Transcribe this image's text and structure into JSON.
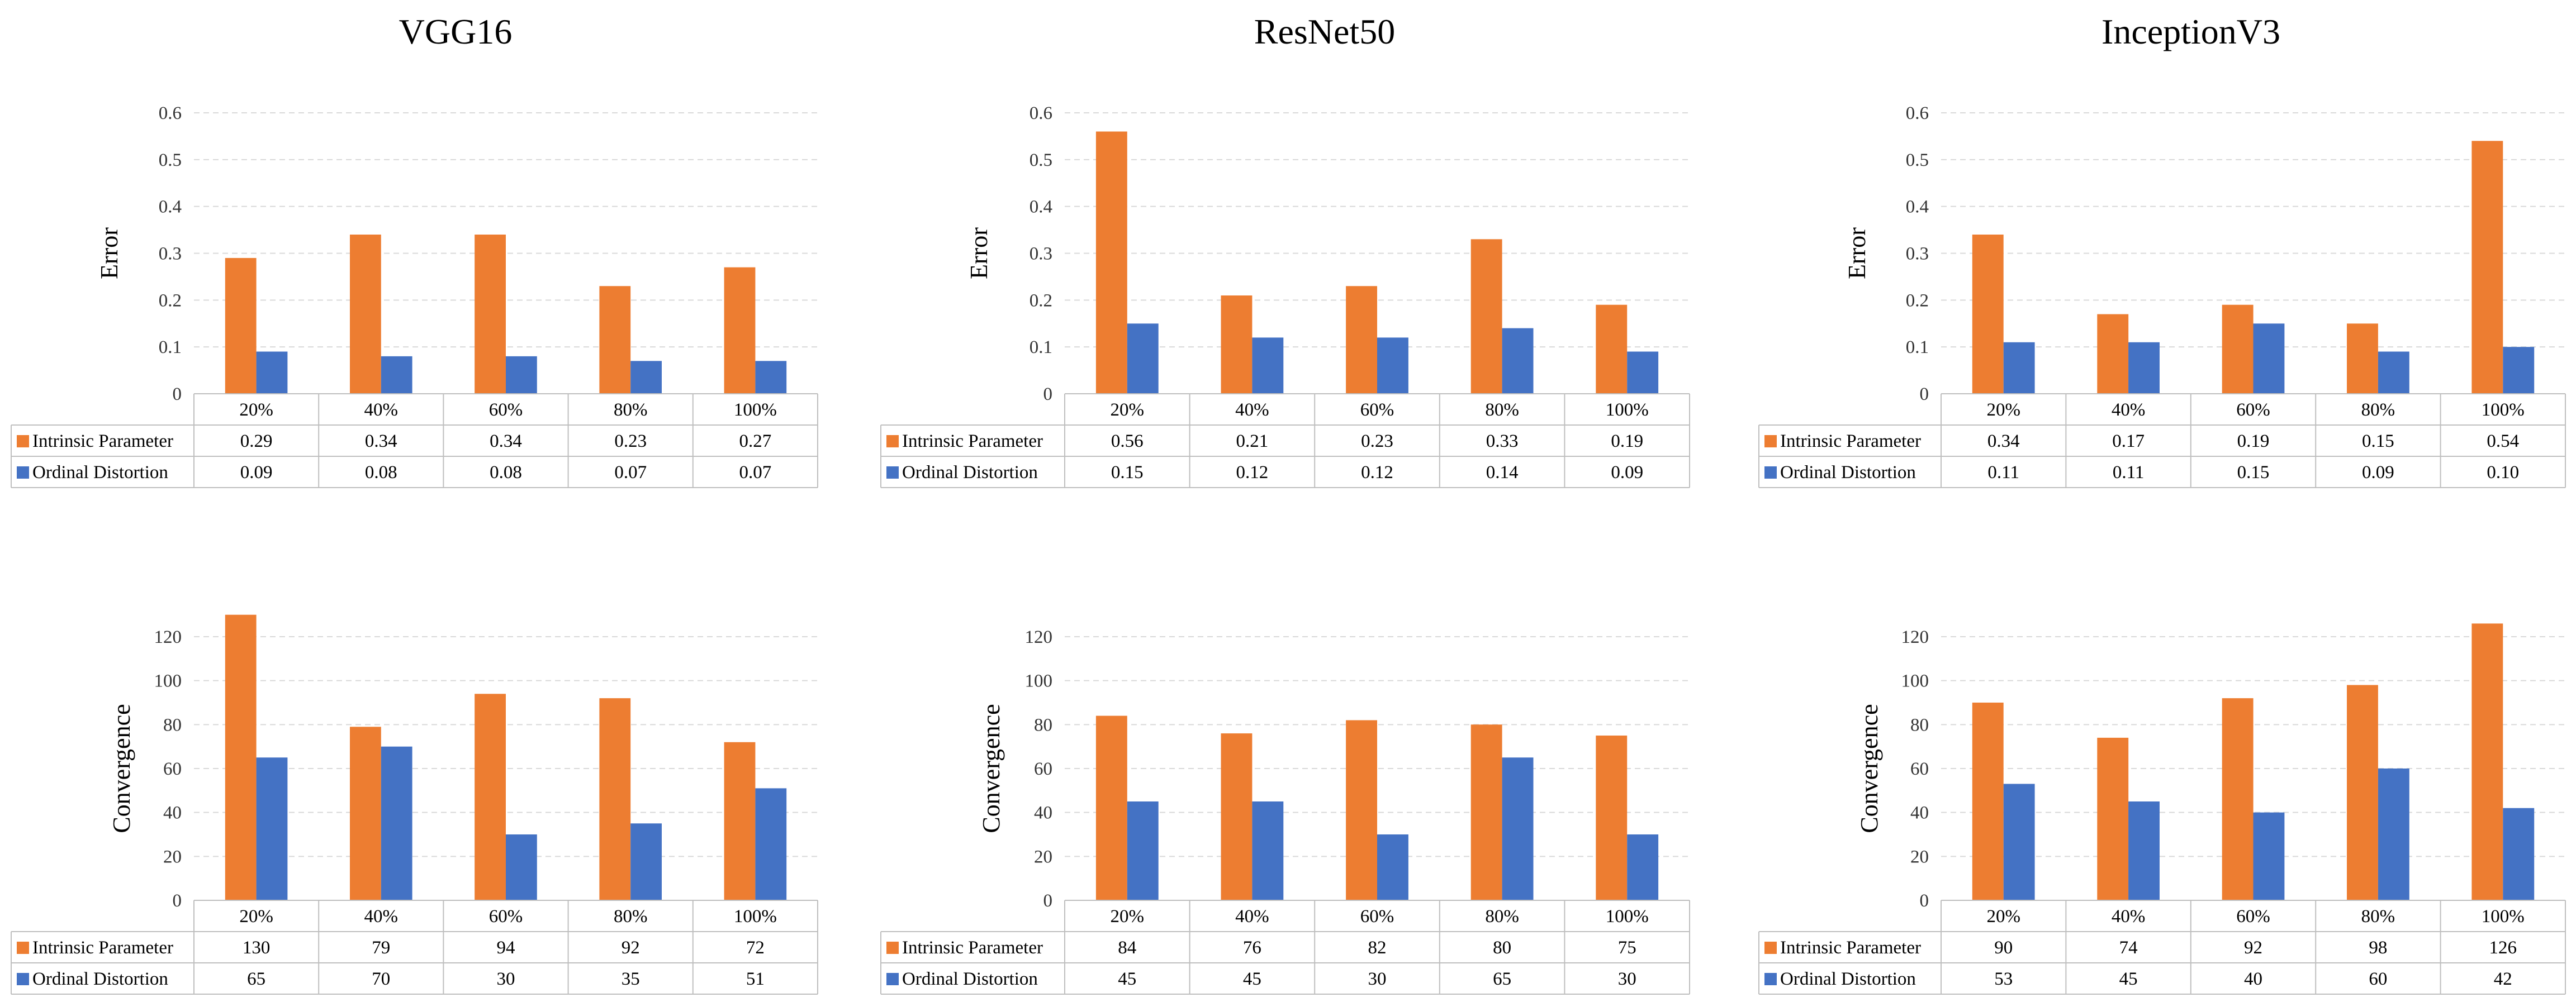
{
  "colors": {
    "intrinsic": "#ed7d31",
    "ordinal": "#4472c4",
    "grid": "#d9d9d9",
    "table": "#bfbfbf"
  },
  "columns": [
    {
      "title": "VGG16"
    },
    {
      "title": "ResNet50"
    },
    {
      "title": "InceptionV3"
    }
  ],
  "chart_data": [
    {
      "type": "bar",
      "model": "VGG16",
      "title": "VGG16",
      "ylabel": "Error",
      "categories": [
        "20%",
        "40%",
        "60%",
        "80%",
        "100%"
      ],
      "ylim": [
        0,
        0.6
      ],
      "yticks": [
        "0",
        "0.1",
        "0.2",
        "0.3",
        "0.4",
        "0.5",
        "0.6"
      ],
      "grid": true,
      "series": [
        {
          "name": "Intrinsic Parameter",
          "values": [
            0.29,
            0.34,
            0.34,
            0.23,
            0.27
          ],
          "labels": [
            "0.29",
            "0.34",
            "0.34",
            "0.23",
            "0.27"
          ]
        },
        {
          "name": "Ordinal Distortion",
          "values": [
            0.09,
            0.08,
            0.08,
            0.07,
            0.07
          ],
          "labels": [
            "0.09",
            "0.08",
            "0.08",
            "0.07",
            "0.07"
          ]
        }
      ]
    },
    {
      "type": "bar",
      "model": "ResNet50",
      "title": "ResNet50",
      "ylabel": "Error",
      "categories": [
        "20%",
        "40%",
        "60%",
        "80%",
        "100%"
      ],
      "ylim": [
        0,
        0.6
      ],
      "yticks": [
        "0",
        "0.1",
        "0.2",
        "0.3",
        "0.4",
        "0.5",
        "0.6"
      ],
      "grid": true,
      "series": [
        {
          "name": "Intrinsic Parameter",
          "values": [
            0.56,
            0.21,
            0.23,
            0.33,
            0.19
          ],
          "labels": [
            "0.56",
            "0.21",
            "0.23",
            "0.33",
            "0.19"
          ]
        },
        {
          "name": "Ordinal Distortion",
          "values": [
            0.15,
            0.12,
            0.12,
            0.14,
            0.09
          ],
          "labels": [
            "0.15",
            "0.12",
            "0.12",
            "0.14",
            "0.09"
          ]
        }
      ]
    },
    {
      "type": "bar",
      "model": "InceptionV3",
      "title": "InceptionV3",
      "ylabel": "Error",
      "categories": [
        "20%",
        "40%",
        "60%",
        "80%",
        "100%"
      ],
      "ylim": [
        0,
        0.6
      ],
      "yticks": [
        "0",
        "0.1",
        "0.2",
        "0.3",
        "0.4",
        "0.5",
        "0.6"
      ],
      "grid": true,
      "series": [
        {
          "name": "Intrinsic Parameter",
          "values": [
            0.34,
            0.17,
            0.19,
            0.15,
            0.54
          ],
          "labels": [
            "0.34",
            "0.17",
            "0.19",
            "0.15",
            "0.54"
          ]
        },
        {
          "name": "Ordinal Distortion",
          "values": [
            0.11,
            0.11,
            0.15,
            0.09,
            0.1
          ],
          "labels": [
            "0.11",
            "0.11",
            "0.15",
            "0.09",
            "0.10"
          ]
        }
      ]
    },
    {
      "type": "bar",
      "model": "VGG16",
      "ylabel": "Convergence",
      "categories": [
        "20%",
        "40%",
        "60%",
        "80%",
        "100%"
      ],
      "ylim": [
        0,
        120
      ],
      "yticks": [
        "0",
        "20",
        "40",
        "60",
        "80",
        "100",
        "120"
      ],
      "grid": true,
      "series": [
        {
          "name": "Intrinsic Parameter",
          "values": [
            130,
            79,
            94,
            92,
            72
          ],
          "labels": [
            "130",
            "79",
            "94",
            "92",
            "72"
          ]
        },
        {
          "name": "Ordinal Distortion",
          "values": [
            65,
            70,
            30,
            35,
            51
          ],
          "labels": [
            "65",
            "70",
            "30",
            "35",
            "51"
          ]
        }
      ]
    },
    {
      "type": "bar",
      "model": "ResNet50",
      "ylabel": "Convergence",
      "categories": [
        "20%",
        "40%",
        "60%",
        "80%",
        "100%"
      ],
      "ylim": [
        0,
        120
      ],
      "yticks": [
        "0",
        "20",
        "40",
        "60",
        "80",
        "100",
        "120"
      ],
      "grid": true,
      "series": [
        {
          "name": "Intrinsic Parameter",
          "values": [
            84,
            76,
            82,
            80,
            75
          ],
          "labels": [
            "84",
            "76",
            "82",
            "80",
            "75"
          ]
        },
        {
          "name": "Ordinal Distortion",
          "values": [
            45,
            45,
            30,
            65,
            30
          ],
          "labels": [
            "45",
            "45",
            "30",
            "65",
            "30"
          ]
        }
      ]
    },
    {
      "type": "bar",
      "model": "InceptionV3",
      "ylabel": "Convergence",
      "categories": [
        "20%",
        "40%",
        "60%",
        "80%",
        "100%"
      ],
      "ylim": [
        0,
        120
      ],
      "yticks": [
        "0",
        "20",
        "40",
        "60",
        "80",
        "100",
        "120"
      ],
      "grid": true,
      "series": [
        {
          "name": "Intrinsic Parameter",
          "values": [
            90,
            74,
            92,
            98,
            126
          ],
          "labels": [
            "90",
            "74",
            "92",
            "98",
            "126"
          ]
        },
        {
          "name": "Ordinal Distortion",
          "values": [
            53,
            45,
            40,
            60,
            42
          ],
          "labels": [
            "53",
            "45",
            "40",
            "60",
            "42"
          ]
        }
      ]
    }
  ]
}
